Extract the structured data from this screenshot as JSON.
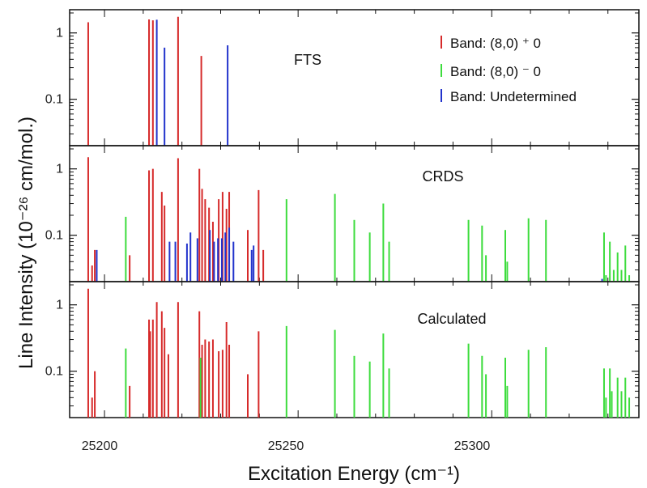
{
  "chart_data": {
    "type": "bar",
    "xlabel": "Excitation Energy (cm⁻¹)",
    "ylabel": "Line Intensity (10⁻²⁶ cm/mol.)",
    "xlim": [
      25191,
      25338
    ],
    "ylim": [
      0.02,
      2.0
    ],
    "yscale": "log",
    "xticks": [
      "25200",
      "25250",
      "25300"
    ],
    "yticks": [
      "0.1",
      "1"
    ],
    "legend": {
      "placement": "top-right",
      "entries": [
        "Band: (8,0) ⁺ 0",
        "Band: (8,0) ⁻ 0",
        "Band: Undetermined"
      ]
    },
    "colors": {
      "plus": "#d62a2a",
      "minus": "#3ddc3d",
      "undetermined": "#2233cc"
    },
    "panels": [
      {
        "label": "FTS",
        "series": [
          {
            "key": "plus",
            "x": [
              25195.8,
              25211.5,
              25212.5,
              25219.0,
              25225.0
            ],
            "values": [
              1.45,
              1.6,
              1.55,
              1.75,
              0.45
            ]
          },
          {
            "key": "undetermined",
            "x": [
              25213.5,
              25215.5,
              25231.8
            ],
            "values": [
              1.58,
              0.6,
              0.65
            ]
          }
        ]
      },
      {
        "label": "CRDS",
        "series": [
          {
            "key": "plus",
            "x": [
              25195.8,
              25196.8,
              25197.5,
              25206.5,
              25211.5,
              25212.5,
              25214.8,
              25215.5,
              25219.0,
              25224.5,
              25225.2,
              25226.0,
              25227.0,
              25228.0,
              25229.5,
              25230.5,
              25231.5,
              25232.2,
              25237.0,
              25239.8,
              25241.0
            ],
            "values": [
              1.5,
              0.035,
              0.06,
              0.05,
              0.95,
              1.0,
              0.45,
              0.28,
              1.45,
              1.0,
              0.5,
              0.35,
              0.26,
              0.16,
              0.35,
              0.45,
              0.25,
              0.45,
              0.12,
              0.48,
              0.06
            ]
          },
          {
            "key": "minus",
            "x": [
              25205.5,
              25247.0,
              25259.5,
              25264.5,
              25268.5,
              25272.0,
              25273.5,
              25294.0,
              25297.5,
              25298.5,
              25303.5,
              25304.0,
              25309.5,
              25314.0,
              25329.0,
              25329.5,
              25330.5,
              25331.5,
              25332.5,
              25333.5,
              25334.5,
              25335.5
            ],
            "values": [
              0.19,
              0.35,
              0.42,
              0.17,
              0.11,
              0.3,
              0.08,
              0.17,
              0.14,
              0.05,
              0.12,
              0.04,
              0.18,
              0.17,
              0.11,
              0.025,
              0.08,
              0.03,
              0.055,
              0.03,
              0.07,
              0.025
            ]
          },
          {
            "key": "undetermined",
            "x": [
              25198.0,
              25216.8,
              25218.3,
              25221.3,
              25222.2,
              25224.0,
              25227.2,
              25228.3,
              25229.3,
              25230.3,
              25231.2,
              25232.2,
              25233.3,
              25238.0,
              25238.5,
              25328.5
            ],
            "values": [
              0.06,
              0.08,
              0.08,
              0.075,
              0.11,
              0.09,
              0.12,
              0.08,
              0.09,
              0.09,
              0.11,
              0.13,
              0.08,
              0.06,
              0.07,
              0.022
            ]
          }
        ]
      },
      {
        "label": "Calculated",
        "series": [
          {
            "key": "plus",
            "x": [
              25195.8,
              25196.8,
              25197.5,
              25206.5,
              25211.5,
              25211.8,
              25212.5,
              25213.5,
              25214.8,
              25215.5,
              25216.5,
              25219.0,
              25224.5,
              25225.2,
              25226.0,
              25227.0,
              25228.0,
              25229.5,
              25230.5,
              25231.5,
              25232.2,
              25237.0,
              25239.8
            ],
            "values": [
              1.75,
              0.04,
              0.1,
              0.06,
              0.6,
              0.4,
              0.6,
              1.1,
              0.8,
              0.45,
              0.18,
              1.1,
              0.8,
              0.25,
              0.3,
              0.28,
              0.3,
              0.2,
              0.21,
              0.55,
              0.25,
              0.09,
              0.4
            ]
          },
          {
            "key": "minus",
            "x": [
              25205.5,
              25224.8,
              25247.0,
              25259.5,
              25264.5,
              25268.5,
              25272.0,
              25273.5,
              25294.0,
              25297.5,
              25298.5,
              25303.5,
              25304.0,
              25309.5,
              25314.0,
              25329.0,
              25329.5,
              25330.5,
              25331.0,
              25332.5,
              25333.5,
              25334.5,
              25335.5
            ],
            "values": [
              0.22,
              0.16,
              0.48,
              0.42,
              0.17,
              0.14,
              0.37,
              0.11,
              0.26,
              0.17,
              0.09,
              0.16,
              0.06,
              0.21,
              0.23,
              0.11,
              0.04,
              0.11,
              0.05,
              0.08,
              0.05,
              0.08,
              0.04
            ]
          }
        ]
      }
    ]
  }
}
